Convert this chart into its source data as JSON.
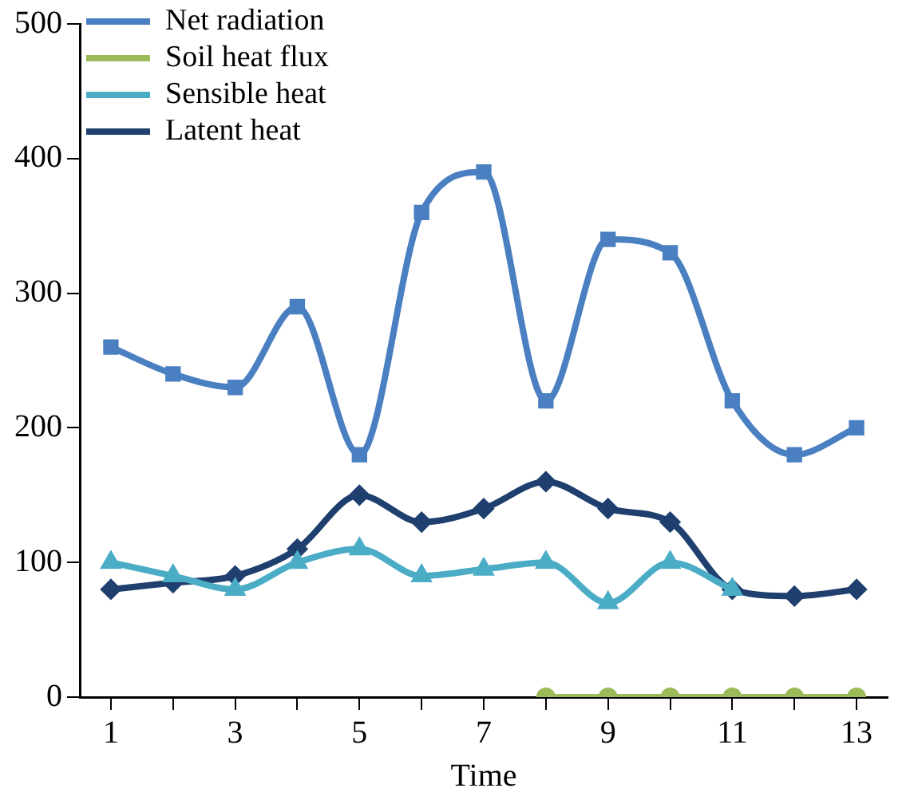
{
  "chart_data": {
    "type": "line",
    "xlabel": "Time",
    "x": [
      1,
      2,
      3,
      4,
      5,
      6,
      7,
      8,
      9,
      10,
      11,
      12,
      13
    ],
    "xlim": [
      0.5,
      13.5
    ],
    "xticks": [
      1,
      {
        "value": 2,
        "label": null
      },
      3,
      {
        "value": 4,
        "label": null
      },
      5,
      {
        "value": 6,
        "label": null
      },
      7,
      {
        "value": 8,
        "label": null
      },
      9,
      {
        "value": 10,
        "label": null
      },
      11,
      {
        "value": 12,
        "label": null
      },
      13
    ],
    "series": [
      {
        "name": "Net radiation",
        "color": "#4a7fc1",
        "marker": "square",
        "values": [
          260,
          240,
          230,
          290,
          180,
          360,
          390,
          220,
          340,
          330,
          220,
          180,
          200
        ]
      },
      {
        "name": "Soil heat flux",
        "color": "#9bbb59",
        "marker": "circle",
        "values": [
          null,
          null,
          null,
          null,
          null,
          null,
          null,
          0,
          0,
          0,
          0,
          0,
          0
        ]
      },
      {
        "name": "Sensible heat",
        "color": "#4bacc6",
        "marker": "triangle",
        "values": [
          100,
          90,
          80,
          100,
          110,
          90,
          95,
          100,
          70,
          100,
          80,
          null,
          null
        ]
      },
      {
        "name": "Latent heat",
        "color": "#1f3f6e",
        "marker": "diamond",
        "values": [
          80,
          85,
          90,
          110,
          150,
          130,
          140,
          160,
          140,
          130,
          80,
          75,
          80
        ]
      }
    ],
    "ylim": [
      0,
      500
    ],
    "yticks": [
      0,
      100,
      200,
      300,
      400,
      500
    ],
    "grid": false,
    "legend": "top left"
  }
}
